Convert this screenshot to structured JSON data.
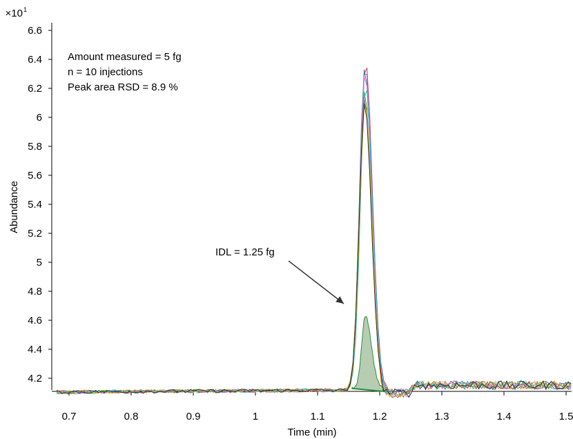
{
  "chart_data": {
    "type": "line",
    "title": "",
    "xlabel": "Time (min)",
    "ylabel": "Abundance",
    "y_multiplier_label": "×10",
    "y_multiplier_exponent": "1",
    "xlim": [
      0.68,
      1.545
    ],
    "ylim": [
      4.08,
      6.62
    ],
    "x_ticks": [
      "0.7",
      "0.8",
      "0.9",
      "1",
      "1.1",
      "1.2",
      "1.3",
      "1.4",
      "1.5"
    ],
    "y_ticks": [
      "4.2",
      "4.4",
      "4.6",
      "4.8",
      "5",
      "5.2",
      "5.4",
      "5.6",
      "5.8",
      "6",
      "6.2",
      "6.4",
      "6.6"
    ],
    "grid": false,
    "legend": "none",
    "annotations": {
      "line1": "Amount measured = 5 fg",
      "line2": "n = 10 injections",
      "line3": "Peak area RSD = 8.9 %",
      "idl": "IDL = 1.25 fg"
    },
    "series_colors": [
      "#d62728",
      "#1f77b4",
      "#2ca02c",
      "#ff7f0e",
      "#9467bd",
      "#8c564b",
      "#e377c2",
      "#17becf",
      "#bcbd22",
      "#222222"
    ],
    "peak_apexes": [
      6.37,
      6.33,
      6.18,
      6.13,
      6.35,
      6.12,
      6.3,
      6.22,
      6.1,
      6.08
    ],
    "peak_center": 1.177,
    "idl_peak": {
      "apex_x": 1.177,
      "apex_y": 4.63,
      "start_x": 1.155,
      "end_x": 1.205,
      "baseline_y": 4.13,
      "fill": "#a9c4a5",
      "stroke": "#2e8b3a"
    }
  }
}
